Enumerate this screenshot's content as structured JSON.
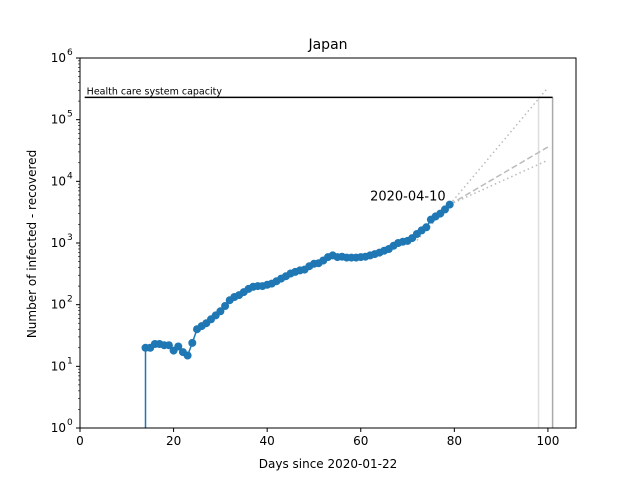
{
  "chart_data": {
    "type": "line",
    "title": "Japan",
    "xlabel": "Days since 2020-01-22",
    "ylabel": "Number of infected - recovered",
    "xlim": [
      0,
      106
    ],
    "ylim_log10": [
      0,
      6
    ],
    "y_scale": "log",
    "x_ticks": [
      0,
      20,
      40,
      60,
      80,
      100
    ],
    "x_tick_labels": [
      "0",
      "20",
      "40",
      "60",
      "80",
      "100"
    ],
    "y_ticks_exponents": [
      0,
      1,
      2,
      3,
      4,
      5,
      6
    ],
    "y_tick_labels": [
      "10",
      "10",
      "10",
      "10",
      "10",
      "10",
      "10"
    ],
    "y_tick_superscripts": [
      "0",
      "1",
      "2",
      "3",
      "4",
      "5",
      "6"
    ],
    "colors": {
      "series": "#1f77b4",
      "capacity": "#000000",
      "projection": "#bbbbbb",
      "vertical_marker": "#999999"
    },
    "series": {
      "x": [
        14,
        15,
        16,
        17,
        18,
        19,
        20,
        21,
        22,
        23,
        24,
        25,
        26,
        27,
        28,
        29,
        30,
        31,
        32,
        33,
        34,
        35,
        36,
        37,
        38,
        39,
        40,
        41,
        42,
        43,
        44,
        45,
        46,
        47,
        48,
        49,
        50,
        51,
        52,
        53,
        54,
        55,
        56,
        57,
        58,
        59,
        60,
        61,
        62,
        63,
        64,
        65,
        66,
        67,
        68,
        69,
        70,
        71,
        72,
        73,
        74,
        75,
        76,
        77,
        78,
        79
      ],
      "y": [
        20,
        20,
        23,
        23,
        22,
        22,
        18,
        21,
        17,
        15,
        24,
        40,
        45,
        50,
        58,
        67,
        78,
        95,
        118,
        133,
        143,
        160,
        180,
        195,
        200,
        200,
        210,
        220,
        240,
        265,
        290,
        320,
        340,
        360,
        370,
        420,
        460,
        470,
        520,
        590,
        630,
        590,
        600,
        580,
        580,
        580,
        590,
        600,
        630,
        660,
        700,
        750,
        800,
        900,
        1000,
        1050,
        1080,
        1200,
        1400,
        1600,
        1800,
        2400,
        2700,
        3000,
        3500,
        4200
      ]
    },
    "initial_drop_day": 14,
    "capacity": {
      "value": 230000,
      "x_range": [
        1,
        101
      ],
      "label": "Health care system capacity"
    },
    "annotation": {
      "text": "2020-04-10",
      "x": 79,
      "y": 4200
    },
    "projections": [
      {
        "style": "dashed",
        "x": [
          79,
          100
        ],
        "y": [
          4200,
          36000
        ]
      },
      {
        "style": "dotted",
        "x": [
          79,
          100
        ],
        "y": [
          4200,
          330000
        ]
      },
      {
        "style": "dotted",
        "x": [
          79,
          100
        ],
        "y": [
          4200,
          22000
        ]
      },
      {
        "style": "dotted",
        "x": [
          72,
          79
        ],
        "y": [
          1100,
          4200
        ]
      }
    ],
    "vertical_lines": [
      {
        "x": 98,
        "shade": "light"
      },
      {
        "x": 101,
        "shade": "dark"
      }
    ],
    "grid": false,
    "legend": "none"
  }
}
